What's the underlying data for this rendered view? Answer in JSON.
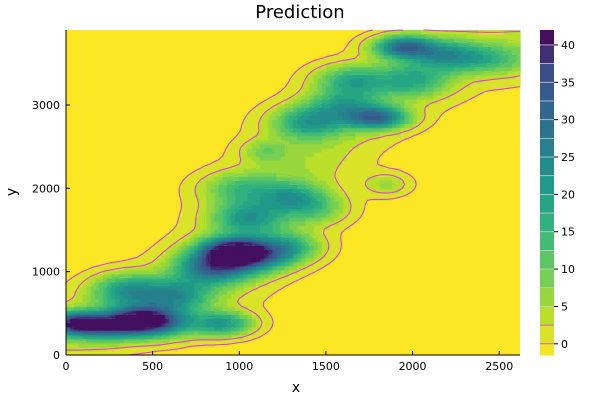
{
  "chart_data": {
    "type": "contour",
    "title": "Prediction",
    "xlabel": "x",
    "ylabel": "y",
    "xlim": [
      0,
      2620
    ],
    "ylim": [
      0,
      3900
    ],
    "x_ticks": [
      {
        "value": 0,
        "label": "0"
      },
      {
        "value": 500,
        "label": "500"
      },
      {
        "value": 1000,
        "label": "1000"
      },
      {
        "value": 1500,
        "label": "1500"
      },
      {
        "value": 2000,
        "label": "2000"
      },
      {
        "value": 2500,
        "label": "2500"
      }
    ],
    "y_ticks": [
      {
        "value": 0,
        "label": "0"
      },
      {
        "value": 1000,
        "label": "1000"
      },
      {
        "value": 2000,
        "label": "2000"
      },
      {
        "value": 3000,
        "label": "3000"
      }
    ],
    "colorbar": {
      "range": [
        -1.5,
        42
      ],
      "ticks": [
        {
          "value": 0,
          "label": "0"
        },
        {
          "value": 5,
          "label": "5"
        },
        {
          "value": 10,
          "label": "10"
        },
        {
          "value": 15,
          "label": "15"
        },
        {
          "value": 20,
          "label": "20"
        },
        {
          "value": 25,
          "label": "25"
        },
        {
          "value": 30,
          "label": "30"
        },
        {
          "value": 35,
          "label": "35"
        },
        {
          "value": 40,
          "label": "40"
        }
      ],
      "levels": [
        -1.5,
        0,
        2.5,
        5,
        7.5,
        10,
        12.5,
        15,
        17.5,
        20,
        22.5,
        25,
        27.5,
        30,
        32.5,
        35,
        37.5,
        40,
        42
      ],
      "colormap": "viridis-reversed"
    },
    "line_color": "#e040e0",
    "background_color": "#fde725",
    "hotspots": [
      {
        "x": 60,
        "y": 380,
        "amp": 36,
        "sx": 110,
        "sy": 90
      },
      {
        "x": 250,
        "y": 350,
        "amp": 24,
        "sx": 130,
        "sy": 110
      },
      {
        "x": 420,
        "y": 420,
        "amp": 30,
        "sx": 120,
        "sy": 110
      },
      {
        "x": 350,
        "y": 780,
        "amp": 20,
        "sx": 140,
        "sy": 130
      },
      {
        "x": 560,
        "y": 400,
        "amp": 22,
        "sx": 130,
        "sy": 120
      },
      {
        "x": 640,
        "y": 720,
        "amp": 18,
        "sx": 140,
        "sy": 130
      },
      {
        "x": 900,
        "y": 380,
        "amp": 22,
        "sx": 120,
        "sy": 100
      },
      {
        "x": 850,
        "y": 1050,
        "amp": 26,
        "sx": 150,
        "sy": 130
      },
      {
        "x": 950,
        "y": 1250,
        "amp": 34,
        "sx": 130,
        "sy": 110
      },
      {
        "x": 1100,
        "y": 1200,
        "amp": 24,
        "sx": 140,
        "sy": 130
      },
      {
        "x": 1050,
        "y": 1650,
        "amp": 18,
        "sx": 140,
        "sy": 130
      },
      {
        "x": 1300,
        "y": 1300,
        "amp": 14,
        "sx": 120,
        "sy": 120
      },
      {
        "x": 1000,
        "y": 2000,
        "amp": 12,
        "sx": 150,
        "sy": 130
      },
      {
        "x": 1300,
        "y": 1900,
        "amp": 16,
        "sx": 130,
        "sy": 120
      },
      {
        "x": 1450,
        "y": 1750,
        "amp": 10,
        "sx": 120,
        "sy": 120
      },
      {
        "x": 1850,
        "y": 2050,
        "amp": 7,
        "sx": 90,
        "sy": 90
      },
      {
        "x": 1150,
        "y": 2450,
        "amp": 8,
        "sx": 90,
        "sy": 90
      },
      {
        "x": 1400,
        "y": 2800,
        "amp": 18,
        "sx": 140,
        "sy": 130
      },
      {
        "x": 1600,
        "y": 3000,
        "amp": 14,
        "sx": 140,
        "sy": 130
      },
      {
        "x": 1800,
        "y": 2850,
        "amp": 28,
        "sx": 120,
        "sy": 90
      },
      {
        "x": 1650,
        "y": 3300,
        "amp": 16,
        "sx": 140,
        "sy": 120
      },
      {
        "x": 2000,
        "y": 3300,
        "amp": 14,
        "sx": 140,
        "sy": 130
      },
      {
        "x": 1950,
        "y": 3700,
        "amp": 30,
        "sx": 120,
        "sy": 90
      },
      {
        "x": 2200,
        "y": 3600,
        "amp": 18,
        "sx": 140,
        "sy": 120
      },
      {
        "x": 2450,
        "y": 3550,
        "amp": 10,
        "sx": 140,
        "sy": 110
      }
    ],
    "band_centerline": [
      {
        "x": 0,
        "y": 300
      },
      {
        "x": 400,
        "y": 500
      },
      {
        "x": 800,
        "y": 900
      },
      {
        "x": 1050,
        "y": 1400
      },
      {
        "x": 1200,
        "y": 1900
      },
      {
        "x": 1450,
        "y": 2600
      },
      {
        "x": 1800,
        "y": 3150
      },
      {
        "x": 2200,
        "y": 3550
      },
      {
        "x": 2620,
        "y": 3650
      }
    ],
    "band_amp": 6,
    "band_width": 230
  }
}
